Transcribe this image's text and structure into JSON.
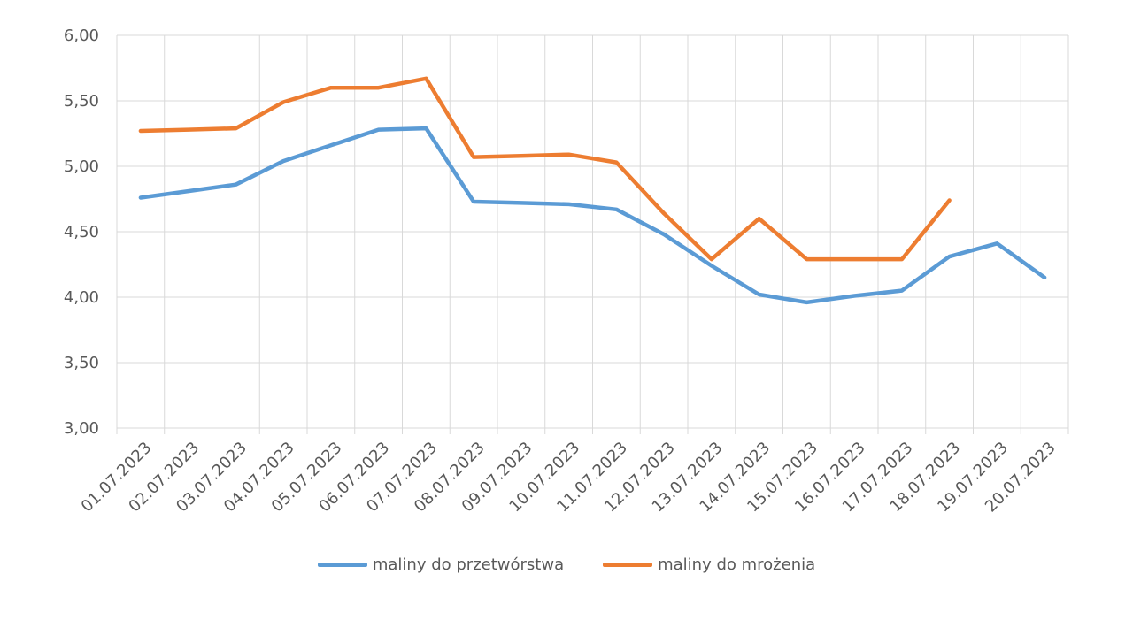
{
  "chart_data": {
    "type": "line",
    "categories": [
      "01.07.2023",
      "02.07.2023",
      "03.07.2023",
      "04.07.2023",
      "05.07.2023",
      "06.07.2023",
      "07.07.2023",
      "08.07.2023",
      "09.07.2023",
      "10.07.2023",
      "11.07.2023",
      "12.07.2023",
      "13.07.2023",
      "14.07.2023",
      "15.07.2023",
      "16.07.2023",
      "17.07.2023",
      "18.07.2023",
      "19.07.2023",
      "20.07.2023"
    ],
    "y_tick_labels": [
      "3,00",
      "3,50",
      "4,00",
      "4,50",
      "5,00",
      "5,50",
      "6,00"
    ],
    "ylim": [
      3.0,
      6.0
    ],
    "y_step": 0.5,
    "grid": true,
    "legend_position": "bottom",
    "series": [
      {
        "name": "maliny do przetwórstwa",
        "color": "#5b9bd5",
        "values": [
          4.76,
          4.81,
          4.86,
          5.04,
          5.16,
          5.28,
          5.29,
          4.73,
          4.72,
          4.71,
          4.67,
          4.48,
          4.24,
          4.02,
          3.96,
          4.01,
          4.05,
          4.31,
          4.41,
          4.15
        ]
      },
      {
        "name": "maliny do mrożenia",
        "color": "#ed7d31",
        "values": [
          5.27,
          5.28,
          5.29,
          5.49,
          5.6,
          5.6,
          5.67,
          5.07,
          5.08,
          5.09,
          5.03,
          4.64,
          4.29,
          4.6,
          4.29,
          4.29,
          4.29,
          4.74,
          null,
          null
        ]
      }
    ]
  }
}
